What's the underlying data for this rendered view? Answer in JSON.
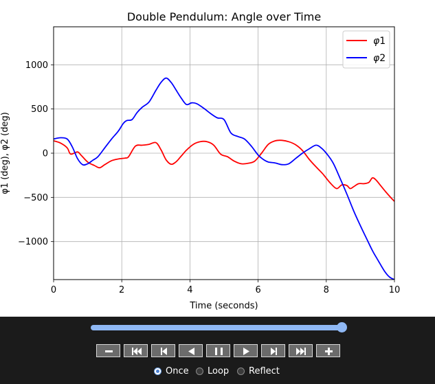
{
  "chart_data": {
    "type": "line",
    "title": "Double Pendulum: Angle over Time",
    "xlabel": "Time (seconds)",
    "ylabel": "φ1 (deg), φ2 (deg)",
    "xlim": [
      0,
      10
    ],
    "ylim": [
      -1430,
      1430
    ],
    "xticks": [
      0,
      2,
      4,
      6,
      8,
      10
    ],
    "yticks": [
      -1000,
      -500,
      0,
      500,
      1000
    ],
    "xtick_labels": [
      "0",
      "2",
      "4",
      "6",
      "8",
      "10"
    ],
    "ytick_labels": [
      "−1000",
      "−500",
      "0",
      "500",
      "1000"
    ],
    "grid": true,
    "legend_position": "top-right",
    "series": [
      {
        "name": "φ1",
        "legend_base": "φ",
        "legend_sub": "1",
        "color": "#ff0000",
        "x": [
          0,
          0.2,
          0.4,
          0.5,
          0.7,
          0.8,
          1.0,
          1.2,
          1.35,
          1.5,
          1.7,
          1.9,
          2.1,
          2.2,
          2.4,
          2.6,
          2.8,
          3.0,
          3.15,
          3.3,
          3.45,
          3.6,
          3.75,
          3.9,
          4.1,
          4.3,
          4.5,
          4.7,
          4.9,
          5.1,
          5.3,
          5.5,
          5.7,
          5.9,
          6.1,
          6.3,
          6.5,
          6.7,
          6.9,
          7.1,
          7.3,
          7.5,
          7.7,
          7.9,
          8.1,
          8.3,
          8.45,
          8.6,
          8.7,
          8.8,
          8.95,
          9.1,
          9.25,
          9.35,
          9.45,
          9.6,
          9.75,
          9.9,
          10.0
        ],
        "y": [
          140,
          115,
          60,
          -10,
          15,
          -20,
          -100,
          -140,
          -165,
          -130,
          -85,
          -65,
          -55,
          -40,
          80,
          90,
          100,
          120,
          40,
          -75,
          -125,
          -95,
          -30,
          35,
          100,
          130,
          130,
          90,
          -10,
          -40,
          -90,
          -120,
          -115,
          -90,
          0,
          100,
          140,
          145,
          130,
          95,
          30,
          -70,
          -155,
          -235,
          -330,
          -400,
          -360,
          -365,
          -400,
          -380,
          -345,
          -345,
          -330,
          -280,
          -300,
          -370,
          -440,
          -505,
          -545
        ]
      },
      {
        "name": "φ2",
        "legend_base": "φ",
        "legend_sub": "2",
        "color": "#0000ff",
        "x": [
          0,
          0.2,
          0.4,
          0.55,
          0.7,
          0.85,
          1.0,
          1.15,
          1.3,
          1.5,
          1.7,
          1.9,
          2.05,
          2.15,
          2.3,
          2.45,
          2.6,
          2.8,
          3.0,
          3.15,
          3.3,
          3.45,
          3.6,
          3.75,
          3.9,
          4.05,
          4.2,
          4.4,
          4.6,
          4.8,
          5.0,
          5.2,
          5.4,
          5.6,
          5.8,
          6.0,
          6.15,
          6.3,
          6.5,
          6.7,
          6.9,
          7.1,
          7.3,
          7.5,
          7.7,
          7.85,
          8.0,
          8.2,
          8.4,
          8.6,
          8.8,
          9.0,
          9.2,
          9.35,
          9.5,
          9.7,
          9.85,
          10.0
        ],
        "y": [
          160,
          175,
          160,
          70,
          -60,
          -130,
          -120,
          -80,
          -40,
          60,
          160,
          250,
          340,
          370,
          380,
          460,
          520,
          580,
          710,
          800,
          850,
          800,
          710,
          620,
          550,
          570,
          560,
          510,
          450,
          400,
          380,
          230,
          190,
          160,
          80,
          -20,
          -70,
          -100,
          -110,
          -130,
          -120,
          -60,
          0,
          50,
          90,
          60,
          0,
          -110,
          -280,
          -460,
          -650,
          -820,
          -980,
          -1100,
          -1200,
          -1330,
          -1400,
          -1430
        ]
      }
    ]
  },
  "controls": {
    "slider": {
      "value": 1.0
    },
    "buttons": [
      {
        "icon": "minus-icon",
        "action": "decrease-speed"
      },
      {
        "icon": "first-frame-icon",
        "action": "first"
      },
      {
        "icon": "step-back-icon",
        "action": "step-back"
      },
      {
        "icon": "play-reverse-icon",
        "action": "play-reverse"
      },
      {
        "icon": "pause-icon",
        "action": "pause"
      },
      {
        "icon": "play-icon",
        "action": "play"
      },
      {
        "icon": "step-forward-icon",
        "action": "step-forward"
      },
      {
        "icon": "last-frame-icon",
        "action": "last"
      },
      {
        "icon": "plus-icon",
        "action": "increase-speed"
      }
    ],
    "modes": [
      {
        "label": "Once",
        "checked": true
      },
      {
        "label": "Loop",
        "checked": false
      },
      {
        "label": "Reflect",
        "checked": false
      }
    ]
  }
}
